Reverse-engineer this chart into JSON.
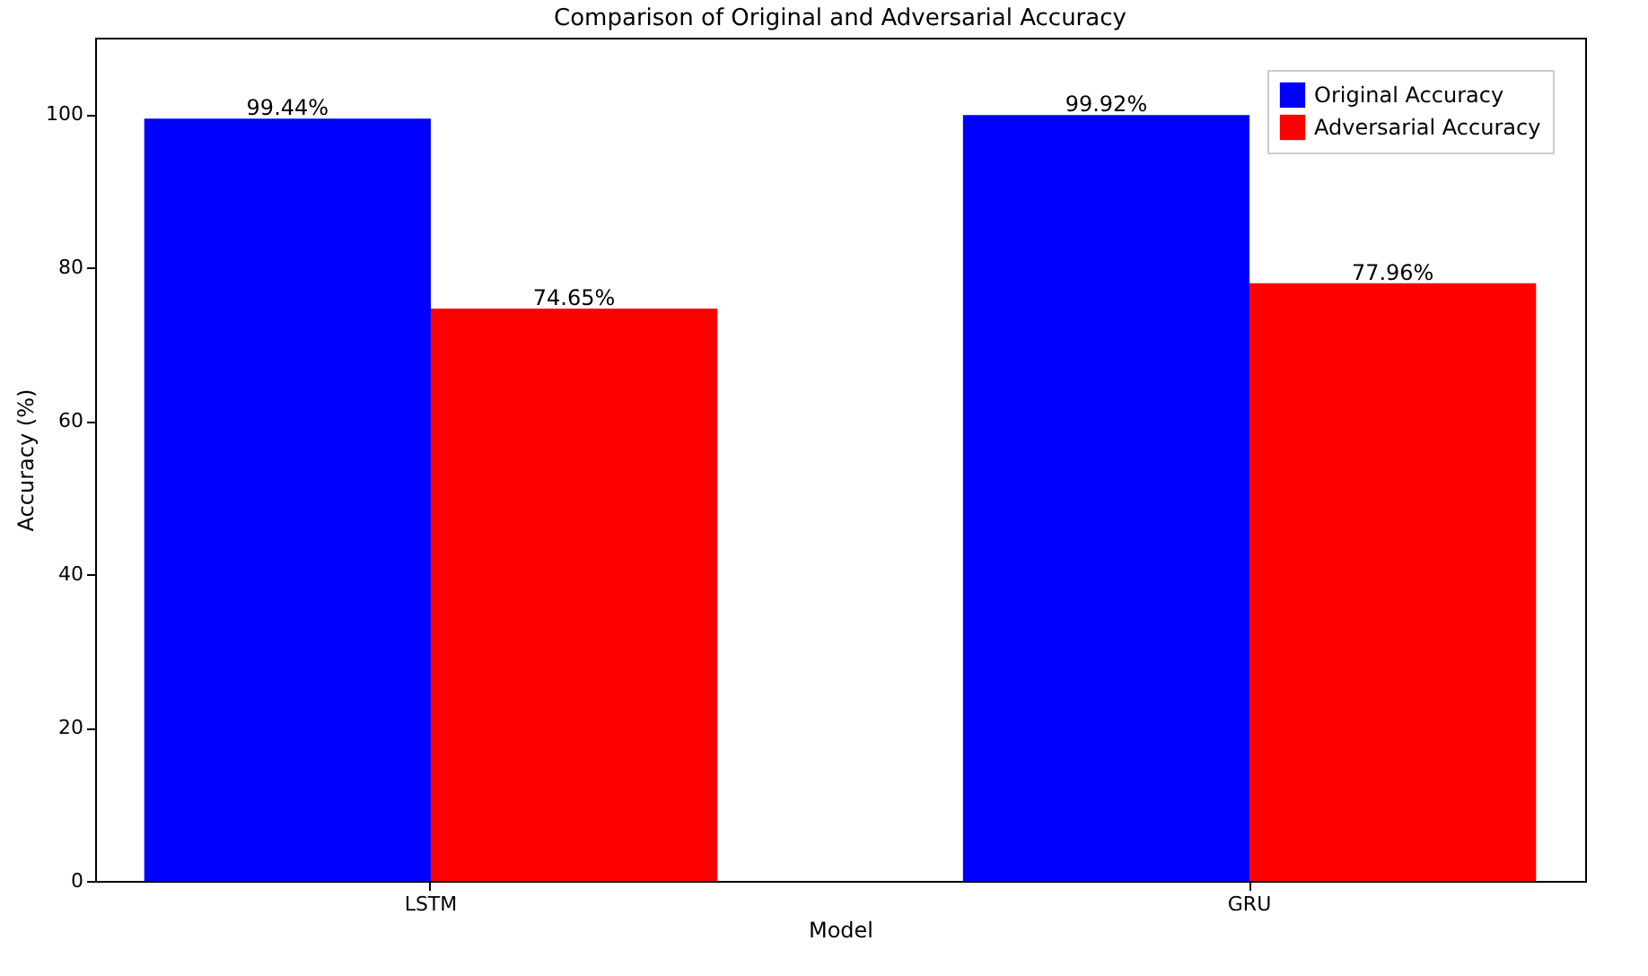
{
  "chart_data": {
    "type": "bar",
    "title": "Comparison of Original and Adversarial Accuracy",
    "xlabel": "Model",
    "ylabel": "Accuracy (%)",
    "categories": [
      "LSTM",
      "GRU"
    ],
    "series": [
      {
        "name": "Original Accuracy",
        "color": "#0000ff",
        "values": [
          99.44,
          99.92
        ],
        "value_labels": [
          "99.44%",
          "99.92%"
        ]
      },
      {
        "name": "Adversarial Accuracy",
        "color": "#ff0000",
        "values": [
          74.65,
          77.96
        ],
        "value_labels": [
          "74.65%",
          "77.96%"
        ]
      }
    ],
    "ylim": [
      0,
      110
    ],
    "yticks": [
      0,
      20,
      40,
      60,
      80,
      100
    ],
    "grid": false,
    "legend": "top right"
  }
}
